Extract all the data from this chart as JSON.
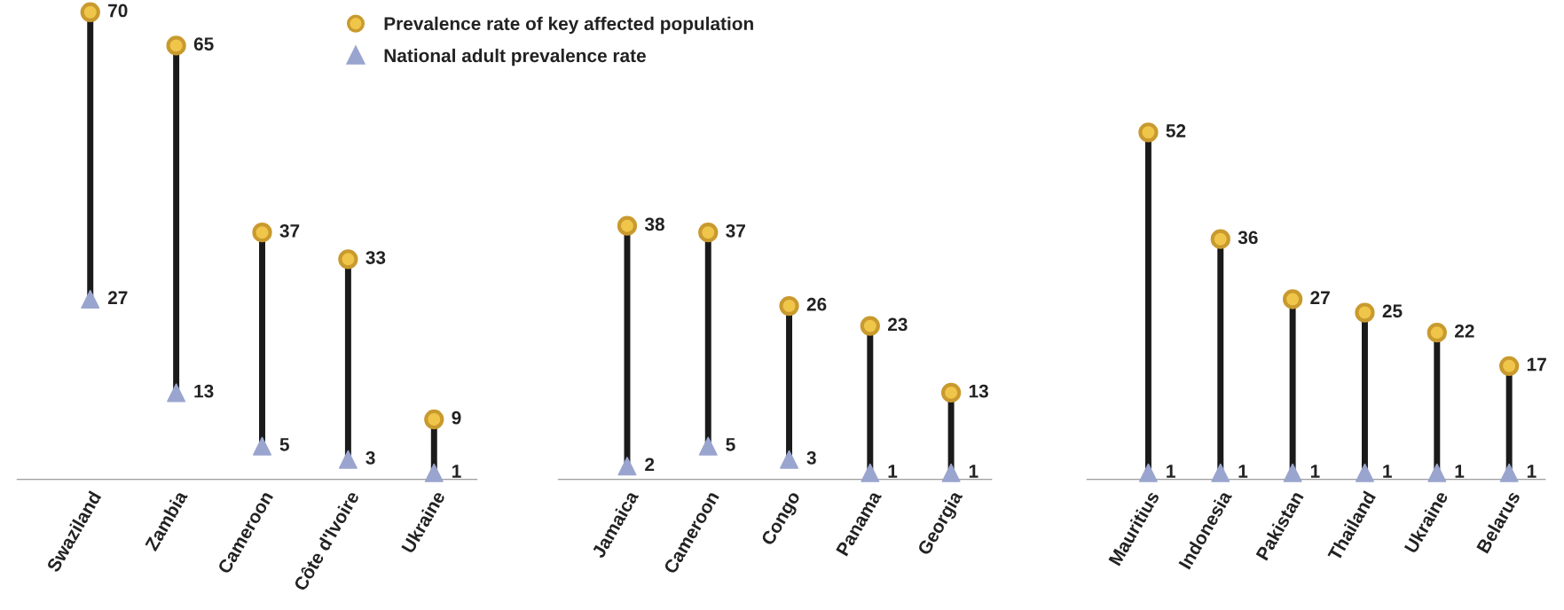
{
  "chart_data": [
    {
      "type": "scatter",
      "categories": [
        "Swaziland",
        "Zambia",
        "Cameroon",
        "Côte d'Ivoire",
        "Ukraine"
      ],
      "data_labels": true,
      "legend": "top",
      "series": [
        {
          "name": "Prevalence rate of key affected population",
          "color": "#c99a2e",
          "marker": "circle",
          "values": [
            70,
            65,
            37,
            33,
            9
          ]
        },
        {
          "name": "National adult prevalence rate",
          "color": "#9aa5cf",
          "marker": "triangle",
          "values": [
            27,
            13,
            5,
            3,
            1
          ]
        }
      ]
    },
    {
      "type": "scatter",
      "categories": [
        "Jamaica",
        "Cameroon",
        "Congo",
        "Panama",
        "Georgia"
      ],
      "data_labels": true,
      "series": [
        {
          "color": "#c99a2e",
          "marker": "circle",
          "values": [
            38,
            37,
            26,
            23,
            13
          ]
        },
        {
          "color": "#9aa5cf",
          "marker": "triangle",
          "values": [
            2,
            5,
            3,
            1,
            1
          ]
        }
      ]
    },
    {
      "type": "scatter",
      "categories": [
        "Mauritius",
        "Indonesia",
        "Pakistan",
        "Thailand",
        "Ukraine",
        "Belarus"
      ],
      "data_labels": true,
      "series": [
        {
          "color": "#c99a2e",
          "marker": "circle",
          "values": [
            52,
            36,
            27,
            25,
            22,
            17
          ]
        },
        {
          "color": "#9aa5cf",
          "marker": "triangle",
          "values": [
            1,
            1,
            1,
            1,
            1,
            1
          ]
        }
      ]
    }
  ]
}
